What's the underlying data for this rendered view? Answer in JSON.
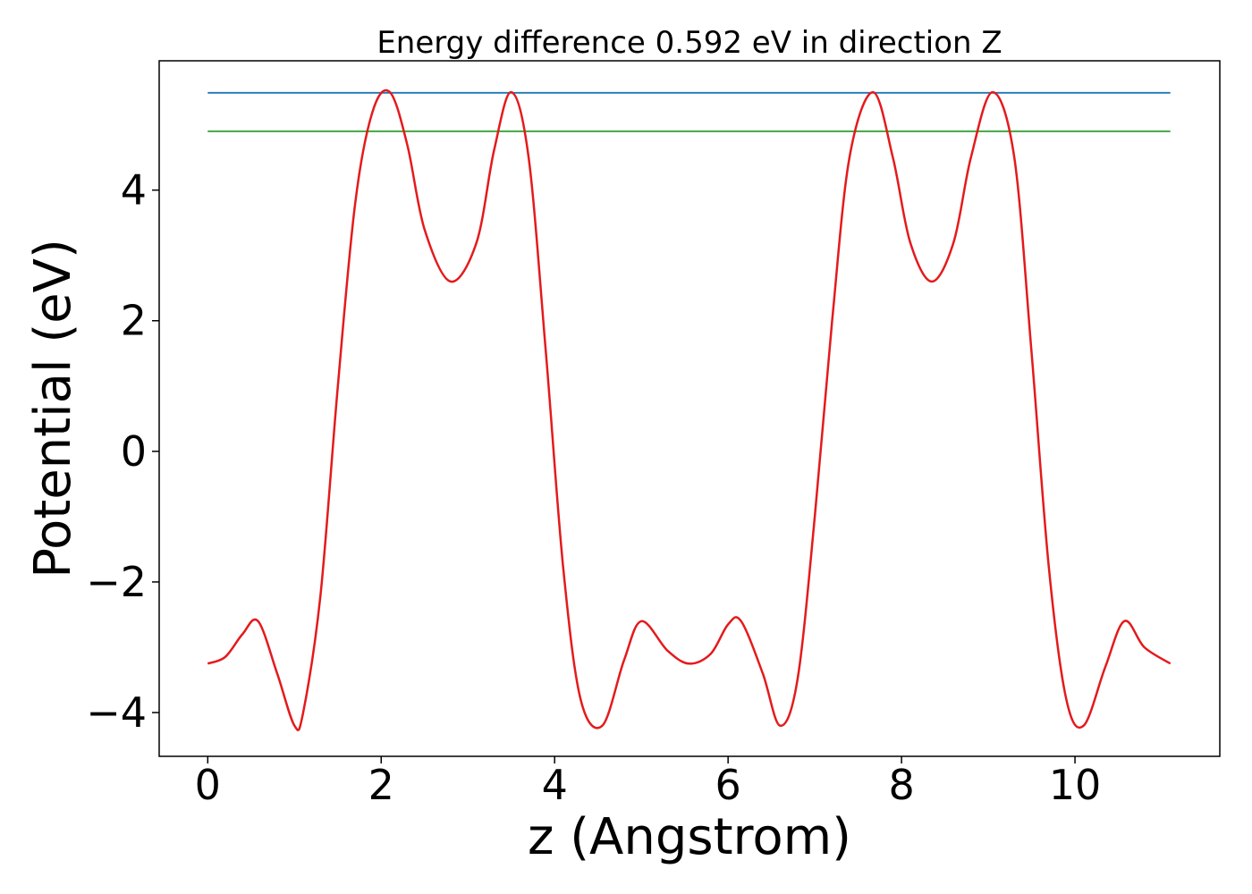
{
  "chart_data": {
    "type": "line",
    "title": "Energy difference 0.592 eV in direction Z",
    "xlabel": "z (Angstrom)",
    "ylabel": "Potential (eV)",
    "xlim": [
      -0.56,
      11.67
    ],
    "ylim": [
      -4.67,
      5.98
    ],
    "xticks": [
      0,
      2,
      4,
      6,
      8,
      10
    ],
    "yticks": [
      -4,
      -2,
      0,
      2,
      4
    ],
    "xtick_labels": [
      "0",
      "2",
      "4",
      "6",
      "8",
      "10"
    ],
    "ytick_labels": [
      "−4",
      "−2",
      "0",
      "2",
      "4"
    ],
    "grid": false,
    "series": [
      {
        "color": "#1f77b4",
        "x": [
          0,
          11.1
        ],
        "y": [
          5.49,
          5.49
        ]
      },
      {
        "color": "#2ca02c",
        "x": [
          0,
          11.1
        ],
        "y": [
          4.9,
          4.9
        ]
      },
      {
        "color": "#e41a1c",
        "x": [
          0,
          0.2,
          0.4,
          0.58,
          0.8,
          1.0,
          1.1,
          1.3,
          1.5,
          1.7,
          1.9,
          2.1,
          2.3,
          2.5,
          2.8,
          3.1,
          3.3,
          3.5,
          3.7,
          3.9,
          4.1,
          4.3,
          4.55,
          4.8,
          5.0,
          5.3,
          5.55,
          5.8,
          6.0,
          6.15,
          6.4,
          6.6,
          6.8,
          7.0,
          7.2,
          7.4,
          7.67,
          7.9,
          8.1,
          8.35,
          8.6,
          8.8,
          9.05,
          9.3,
          9.5,
          9.7,
          9.9,
          10.1,
          10.35,
          10.57,
          10.8,
          11.1
        ],
        "y": [
          -3.25,
          -3.15,
          -2.8,
          -2.6,
          -3.4,
          -4.2,
          -4.0,
          -2.2,
          1.0,
          3.8,
          5.2,
          5.5,
          4.7,
          3.4,
          2.6,
          3.2,
          4.6,
          5.5,
          4.5,
          1.5,
          -1.8,
          -3.8,
          -4.2,
          -3.2,
          -2.6,
          -3.05,
          -3.25,
          -3.1,
          -2.65,
          -2.6,
          -3.4,
          -4.2,
          -3.5,
          -1.0,
          2.0,
          4.5,
          5.5,
          4.5,
          3.2,
          2.6,
          3.2,
          4.5,
          5.5,
          4.5,
          1.5,
          -1.8,
          -3.8,
          -4.2,
          -3.3,
          -2.6,
          -3.0,
          -3.25
        ]
      }
    ]
  }
}
